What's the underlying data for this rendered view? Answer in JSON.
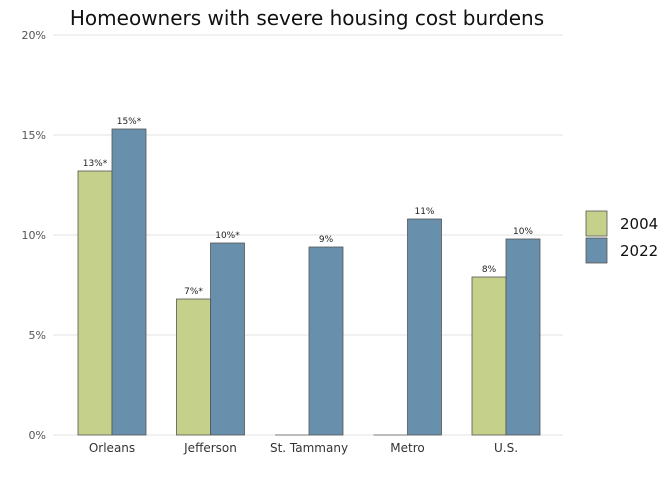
{
  "chart_data": {
    "type": "bar",
    "title": "Homeowners with severe housing cost burdens",
    "xlabel": "",
    "ylabel": "",
    "ylim": [
      0,
      20
    ],
    "yticks": [
      {
        "value": 0,
        "label": "0%"
      },
      {
        "value": 5,
        "label": "5%"
      },
      {
        "value": 10,
        "label": "10%"
      },
      {
        "value": 15,
        "label": "15%"
      },
      {
        "value": 20,
        "label": "20%"
      }
    ],
    "grid": true,
    "legend_position": "right",
    "categories": [
      "Orleans",
      "Jefferson",
      "St. Tammany",
      "Metro",
      "U.S."
    ],
    "series": [
      {
        "name": "2004",
        "color": "#c5d08a",
        "values": [
          13.2,
          6.8,
          0,
          0,
          7.9
        ],
        "labels": [
          "13%*",
          "7%*",
          "",
          "",
          "8%"
        ]
      },
      {
        "name": "2022",
        "color": "#688fab",
        "values": [
          15.3,
          9.6,
          9.4,
          10.8,
          9.8
        ],
        "labels": [
          "15%*",
          "10%*",
          "9%",
          "11%",
          "10%"
        ]
      }
    ]
  }
}
